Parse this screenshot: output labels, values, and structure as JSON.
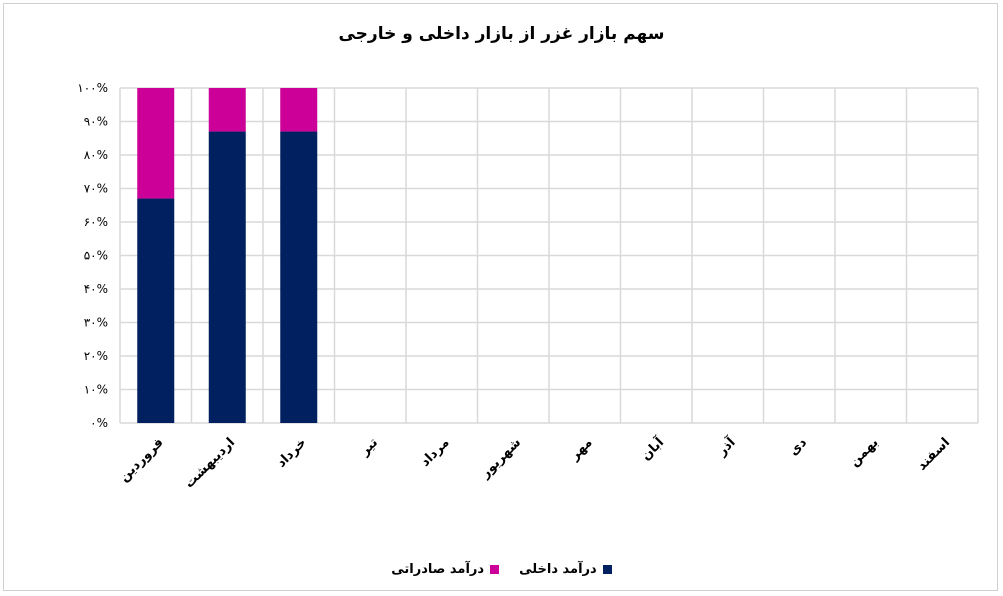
{
  "chart_data": {
    "type": "bar",
    "stacked": "percent",
    "title": "سهم بازار غزر از بازار داخلی و خارجی",
    "categories": [
      "فروردین",
      "اردیبهشت",
      "خرداد",
      "تیر",
      "مرداد",
      "شهریور",
      "مهر",
      "آبان",
      "آذر",
      "دی",
      "بهمن",
      "اسفند"
    ],
    "series": [
      {
        "name": "درآمد داخلی",
        "color": "#002060",
        "values": [
          67,
          87,
          87,
          null,
          null,
          null,
          null,
          null,
          null,
          null,
          null,
          null
        ]
      },
      {
        "name": "درآمد صادراتی",
        "color": "#CC0099",
        "values": [
          33,
          13,
          13,
          null,
          null,
          null,
          null,
          null,
          null,
          null,
          null,
          null
        ]
      }
    ],
    "y_ticks": [
      "۰%",
      "۱۰%",
      "۲۰%",
      "۳۰%",
      "۴۰%",
      "۵۰%",
      "۶۰%",
      "۷۰%",
      "۸۰%",
      "۹۰%",
      "۱۰۰%"
    ],
    "ylim": [
      0,
      100
    ],
    "grid": true,
    "legend_position": "bottom"
  }
}
